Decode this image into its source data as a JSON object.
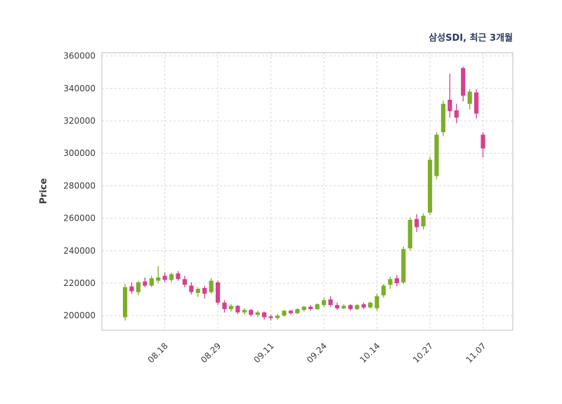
{
  "chart_data": {
    "type": "candlestick",
    "title": "삼성SDI, 최근 3개월",
    "ylabel": "Price",
    "grid": true,
    "ylim": [
      191000,
      362000
    ],
    "xlim": [
      -3.5,
      58.5
    ],
    "y_ticks": [
      200000,
      220000,
      240000,
      260000,
      280000,
      300000,
      320000,
      340000,
      360000
    ],
    "x_tick_labels": [
      "08.18",
      "08.29",
      "09.11",
      "09.24",
      "10.14",
      "10.27",
      "11.07"
    ],
    "x_tick_indices": [
      6,
      14,
      22,
      30,
      38,
      46,
      54
    ],
    "up_color": "#7cae2a",
    "down_color": "#d4418e",
    "ohlc": [
      [
        199000,
        219500,
        197000,
        217500
      ],
      [
        218000,
        220500,
        213500,
        215000
      ],
      [
        214500,
        221500,
        212500,
        220500
      ],
      [
        221000,
        223500,
        217500,
        218500
      ],
      [
        218500,
        224500,
        217500,
        223000
      ],
      [
        221500,
        230500,
        220000,
        223500
      ],
      [
        224500,
        226500,
        220500,
        222000
      ],
      [
        222000,
        226500,
        220500,
        225500
      ],
      [
        226000,
        227500,
        221500,
        222500
      ],
      [
        222500,
        224500,
        217500,
        219000
      ],
      [
        218500,
        220500,
        213000,
        214500
      ],
      [
        214000,
        217500,
        211500,
        216500
      ],
      [
        217000,
        218500,
        210500,
        213500
      ],
      [
        214500,
        223000,
        213500,
        221500
      ],
      [
        220500,
        221500,
        206500,
        208000
      ],
      [
        208000,
        209500,
        202000,
        204000
      ],
      [
        204000,
        207000,
        202500,
        206000
      ],
      [
        206000,
        206500,
        201000,
        202000
      ],
      [
        202000,
        204500,
        200500,
        203500
      ],
      [
        203500,
        204000,
        199500,
        200500
      ],
      [
        200500,
        203000,
        199000,
        202000
      ],
      [
        202000,
        202500,
        197500,
        199000
      ],
      [
        199500,
        200500,
        197000,
        198500
      ],
      [
        198500,
        201000,
        197500,
        200000
      ],
      [
        200000,
        203500,
        199500,
        203000
      ],
      [
        203000,
        203500,
        200500,
        201500
      ],
      [
        201500,
        204500,
        201000,
        204000
      ],
      [
        203500,
        206000,
        202500,
        205500
      ],
      [
        205500,
        206500,
        203000,
        204000
      ],
      [
        204000,
        207500,
        203500,
        207000
      ],
      [
        206500,
        211000,
        205500,
        209500
      ],
      [
        210000,
        212000,
        205500,
        206500
      ],
      [
        206500,
        208000,
        203500,
        204500
      ],
      [
        204500,
        207000,
        204000,
        206000
      ],
      [
        206500,
        207000,
        203000,
        204000
      ],
      [
        204000,
        207000,
        203500,
        206500
      ],
      [
        207000,
        208000,
        204000,
        205000
      ],
      [
        205000,
        208500,
        204500,
        208000
      ],
      [
        204500,
        213500,
        203000,
        212000
      ],
      [
        212500,
        219500,
        211000,
        218500
      ],
      [
        219000,
        224000,
        216500,
        222500
      ],
      [
        223000,
        225000,
        218000,
        220000
      ],
      [
        220500,
        242500,
        219500,
        241000
      ],
      [
        241500,
        260500,
        240000,
        259000
      ],
      [
        259500,
        262500,
        251500,
        254500
      ],
      [
        255000,
        263000,
        253000,
        261500
      ],
      [
        263500,
        298000,
        262000,
        296000
      ],
      [
        286000,
        313000,
        284000,
        311500
      ],
      [
        313000,
        332500,
        310500,
        330500
      ],
      [
        333000,
        349000,
        322000,
        326000
      ],
      [
        326500,
        330500,
        318500,
        322000
      ],
      [
        352500,
        353500,
        332000,
        335500
      ],
      [
        330500,
        339500,
        327000,
        338000
      ],
      [
        337500,
        339500,
        321500,
        324500
      ],
      [
        311500,
        313000,
        297500,
        303000
      ]
    ]
  }
}
